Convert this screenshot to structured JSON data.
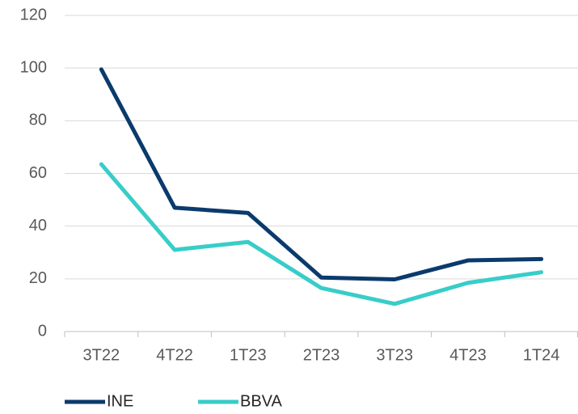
{
  "chart_data": {
    "type": "line",
    "categories": [
      "3T22",
      "4T22",
      "1T23",
      "2T23",
      "3T23",
      "4T23",
      "1T24"
    ],
    "series": [
      {
        "name": "INE",
        "color": "#0b3a6c",
        "values": [
          99.5,
          47,
          45,
          20.5,
          19.8,
          27,
          27.5
        ]
      },
      {
        "name": "BBVA",
        "color": "#38cdc9",
        "values": [
          63.5,
          31,
          34,
          16.5,
          10.5,
          18.5,
          22.5
        ]
      }
    ],
    "ylim": [
      0,
      120
    ],
    "yticks": [
      0,
      20,
      40,
      60,
      80,
      100,
      120
    ],
    "grid": true,
    "legend": "bottom"
  }
}
